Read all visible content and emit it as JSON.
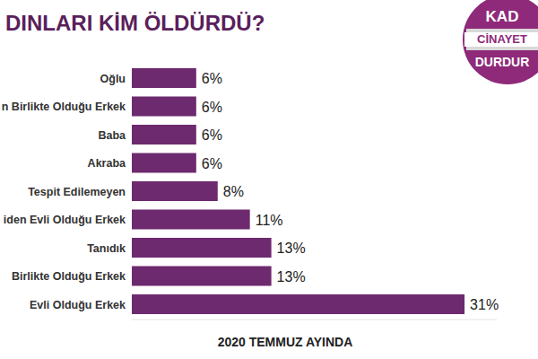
{
  "chart_data": {
    "type": "bar",
    "orientation": "horizontal",
    "title": "DINLARI KİM ÖLDÜRDÜ?",
    "subtitle": "2020 TEMMUZ AYINDA",
    "annotations": [
      "KAD",
      "CİNAYET",
      "DURDUR"
    ],
    "categories": [
      "Oğlu",
      "n Birlikte Olduğu Erkek",
      "Baba",
      "Akraba",
      "Tespit Edilemeyen",
      "iden Evli Olduğu Erkek",
      "Tanıdık",
      "Birlikte Olduğu Erkek",
      "Evli Olduğu Erkek"
    ],
    "values": [
      6,
      6,
      6,
      6,
      8,
      11,
      13,
      13,
      31
    ],
    "value_labels": [
      "6%",
      "6%",
      "6%",
      "6%",
      "8%",
      "11%",
      "13%",
      "13%",
      "31%"
    ],
    "color": "#6d2a6e",
    "ylim": [
      0,
      34
    ],
    "data_labels": true,
    "tick_labels": false,
    "grid": false
  }
}
